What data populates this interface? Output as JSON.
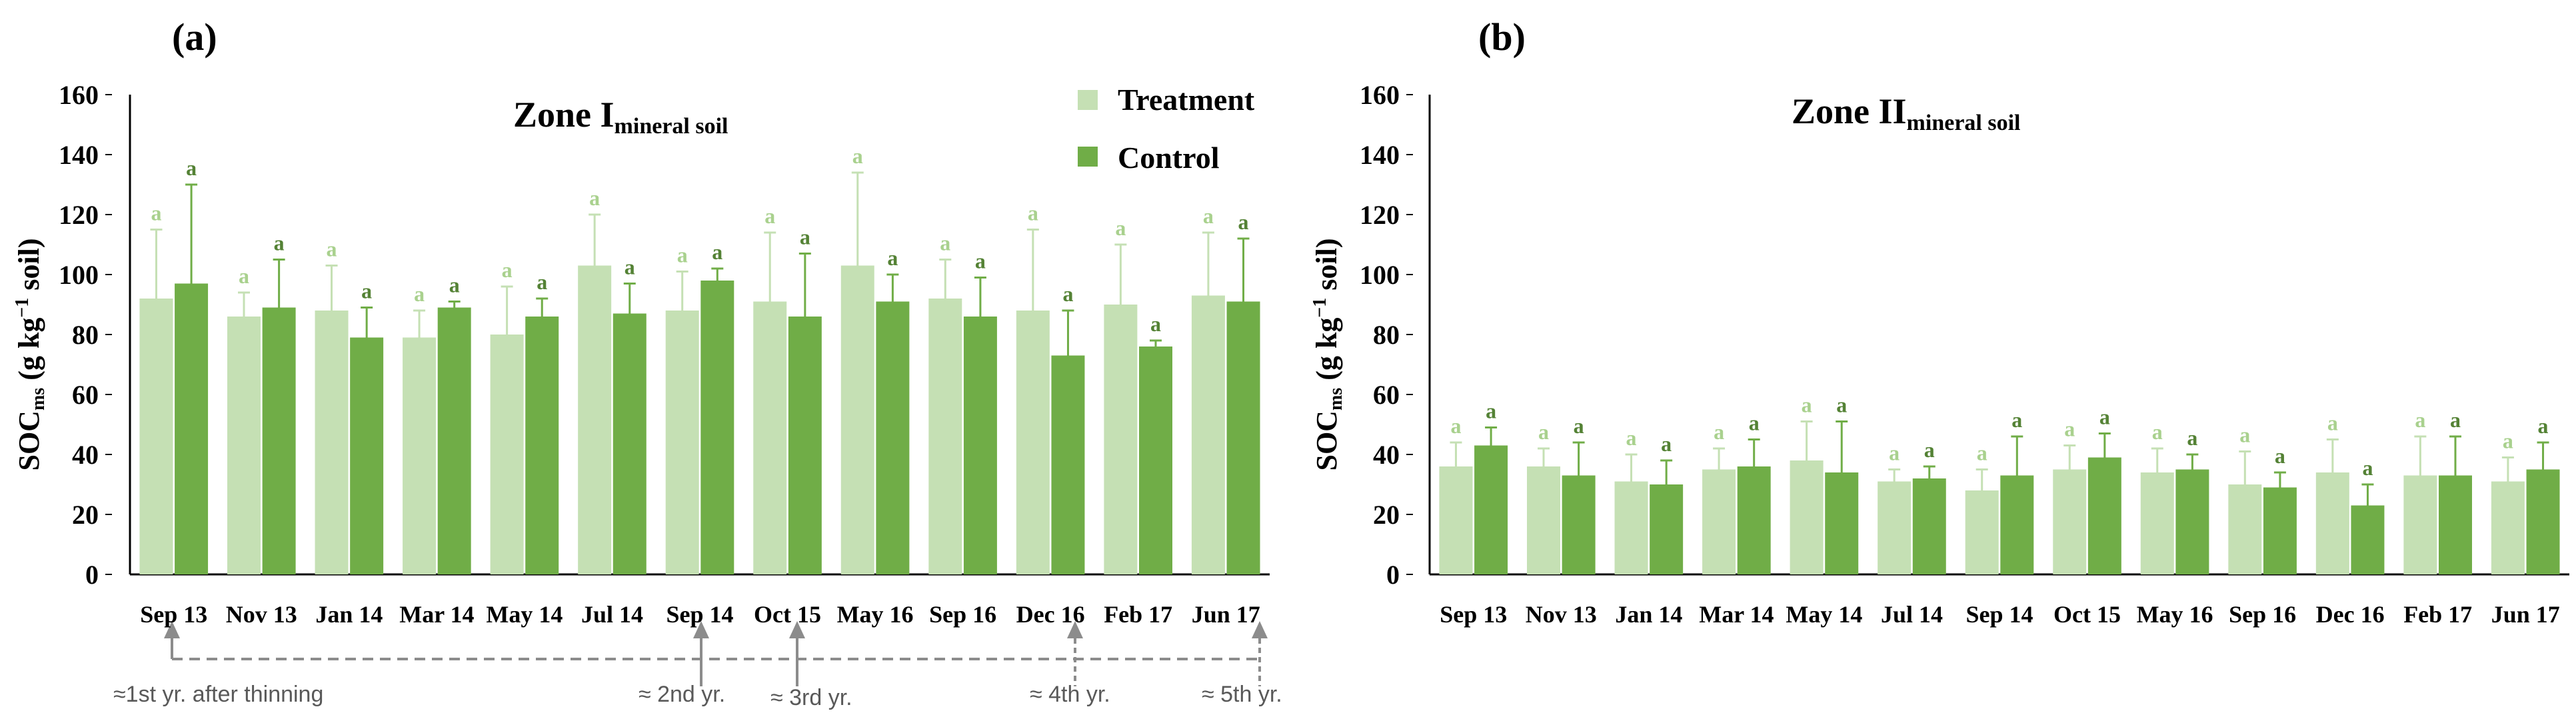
{
  "colors": {
    "treatment": "#c5e0b4",
    "control": "#70ad47",
    "treatment_letter": "#a9d18e",
    "control_letter": "#548235",
    "timeline": "#8c8c8c"
  },
  "legend": {
    "treatment": "Treatment",
    "control": "Control"
  },
  "y_axis_label": {
    "main": "SOC",
    "sub": "ms",
    "unit_open": " (g kg",
    "sup": "−1",
    "unit_close": " soil)"
  },
  "timeline_labels": [
    "≈1st yr. after thinning",
    "≈ 2nd yr.",
    "≈ 3rd yr.",
    "≈ 4th yr.",
    "≈ 5th yr."
  ],
  "chart_data": [
    {
      "type": "bar",
      "panel": "(a)",
      "title": "Zone I",
      "title_sub": "mineral soil",
      "categories": [
        "Sep 13",
        "Nov 13",
        "Jan 14",
        "Mar 14",
        "May 14",
        "Jul 14",
        "Sep 14",
        "Oct 15",
        "May 16",
        "Sep 16",
        "Dec 16",
        "Feb 17",
        "Jun 17"
      ],
      "yticks": [
        "0",
        "20",
        "40",
        "60",
        "80",
        "100",
        "120",
        "140",
        "160"
      ],
      "ylim": [
        0,
        160
      ],
      "series": [
        {
          "name": "Treatment",
          "values": [
            92,
            86,
            88,
            79,
            80,
            103,
            88,
            91,
            103,
            92,
            88,
            90,
            93
          ],
          "errors": [
            23,
            8,
            15,
            9,
            16,
            17,
            13,
            23,
            31,
            13,
            27,
            20,
            21
          ],
          "letters": [
            "a",
            "a",
            "a",
            "a",
            "a",
            "a",
            "a",
            "a",
            "a",
            "a",
            "a",
            "a",
            "a"
          ]
        },
        {
          "name": "Control",
          "values": [
            97,
            89,
            79,
            89,
            86,
            87,
            98,
            86,
            91,
            86,
            73,
            76,
            91
          ],
          "errors": [
            33,
            16,
            10,
            2,
            6,
            10,
            4,
            21,
            9,
            13,
            15,
            2,
            21
          ],
          "letters": [
            "a",
            "a",
            "a",
            "a",
            "a",
            "a",
            "a",
            "a",
            "a",
            "a",
            "a",
            "a",
            "a"
          ]
        }
      ]
    },
    {
      "type": "bar",
      "panel": "(b)",
      "title": "Zone II",
      "title_sub": "mineral soil",
      "categories": [
        "Sep 13",
        "Nov 13",
        "Jan 14",
        "Mar 14",
        "May 14",
        "Jul 14",
        "Sep 14",
        "Oct 15",
        "May 16",
        "Sep 16",
        "Dec 16",
        "Feb 17",
        "Jun 17"
      ],
      "yticks": [
        "0",
        "20",
        "40",
        "60",
        "80",
        "100",
        "120",
        "140",
        "160"
      ],
      "ylim": [
        0,
        160
      ],
      "series": [
        {
          "name": "Treatment",
          "values": [
            36,
            36,
            31,
            35,
            38,
            31,
            28,
            35,
            34,
            30,
            34,
            33,
            31
          ],
          "errors": [
            8,
            6,
            9,
            7,
            13,
            4,
            7,
            8,
            8,
            11,
            11,
            13,
            8
          ],
          "letters": [
            "a",
            "a",
            "a",
            "a",
            "a",
            "a",
            "a",
            "a",
            "a",
            "a",
            "a",
            "a",
            "a"
          ]
        },
        {
          "name": "Control",
          "values": [
            43,
            33,
            30,
            36,
            34,
            32,
            33,
            39,
            35,
            29,
            23,
            33,
            35
          ],
          "errors": [
            6,
            11,
            8,
            9,
            17,
            4,
            13,
            8,
            5,
            5,
            7,
            13,
            9
          ],
          "letters": [
            "a",
            "a",
            "a",
            "a",
            "a",
            "a",
            "a",
            "a",
            "a",
            "a",
            "a",
            "a",
            "a"
          ]
        }
      ]
    }
  ]
}
